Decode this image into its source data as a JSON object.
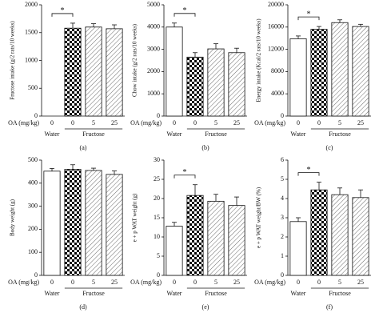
{
  "chart_data": [
    {
      "type": "bar",
      "panel": "(a)",
      "ylabel": "Fructose intake (g/2 rats/10 weeks)",
      "x_label": "OA (mg/kg)",
      "categories": [
        "0",
        "0",
        "5",
        "25"
      ],
      "groups": [
        "Water",
        "Fructose"
      ],
      "values": [
        0,
        1580,
        1600,
        1570
      ],
      "errors": [
        null,
        90,
        60,
        70
      ],
      "ylim": [
        0,
        2000
      ],
      "yticks": [
        0,
        500,
        1000,
        1500,
        2000
      ],
      "annotation": "*"
    },
    {
      "type": "bar",
      "panel": "(b)",
      "ylabel": "Chow intake (g/2 rats/10 weeks)",
      "x_label": "OA (mg/kg)",
      "categories": [
        "0",
        "0",
        "5",
        "25"
      ],
      "groups": [
        "Water",
        "Fructose"
      ],
      "values": [
        4000,
        2650,
        3020,
        2850
      ],
      "errors": [
        180,
        200,
        230,
        200
      ],
      "ylim": [
        0,
        5000
      ],
      "yticks": [
        0,
        1000,
        2000,
        3000,
        4000,
        5000
      ],
      "annotation": "*"
    },
    {
      "type": "bar",
      "panel": "(c)",
      "ylabel": "Energy intake (Kcal/2 rats/10 weeks)",
      "x_label": "OA (mg/kg)",
      "categories": [
        "0",
        "0",
        "5",
        "25"
      ],
      "groups": [
        "Water",
        "Fructose"
      ],
      "values": [
        13900,
        15600,
        16800,
        16100
      ],
      "errors": [
        500,
        500,
        500,
        400
      ],
      "ylim": [
        0,
        20000
      ],
      "yticks": [
        0,
        4000,
        8000,
        12000,
        16000,
        20000
      ],
      "annotation": "*"
    },
    {
      "type": "bar",
      "panel": "(d)",
      "ylabel": "Body weight (g)",
      "x_label": "OA (mg/kg)",
      "categories": [
        "0",
        "0",
        "5",
        "25"
      ],
      "groups": [
        "Water",
        "Fructose"
      ],
      "values": [
        452,
        460,
        455,
        438
      ],
      "errors": [
        12,
        20,
        10,
        15
      ],
      "ylim": [
        0,
        500
      ],
      "yticks": [
        0,
        100,
        200,
        300,
        400,
        500
      ]
    },
    {
      "type": "bar",
      "panel": "(e)",
      "ylabel": "e + p WAT weight (g)",
      "x_label": "OA (mg/kg)",
      "categories": [
        "0",
        "0",
        "5",
        "25"
      ],
      "groups": [
        "Water",
        "Fructose"
      ],
      "values": [
        12.8,
        20.8,
        19.3,
        18.2
      ],
      "errors": [
        1.0,
        2.8,
        1.8,
        2.2
      ],
      "ylim": [
        0,
        30
      ],
      "yticks": [
        0,
        5,
        10,
        15,
        20,
        25,
        30
      ],
      "annotation": "*"
    },
    {
      "type": "bar",
      "panel": "(f)",
      "ylabel": "e + p WAT weight/BW (%)",
      "x_label": "OA (mg/kg)",
      "categories": [
        "0",
        "0",
        "5",
        "25"
      ],
      "groups": [
        "Water",
        "Fructose"
      ],
      "values": [
        2.8,
        4.45,
        4.2,
        4.05
      ],
      "errors": [
        0.2,
        0.4,
        0.35,
        0.4
      ],
      "ylim": [
        0,
        6
      ],
      "yticks": [
        0,
        1,
        2,
        3,
        4,
        5,
        6
      ],
      "annotation": "*"
    }
  ]
}
